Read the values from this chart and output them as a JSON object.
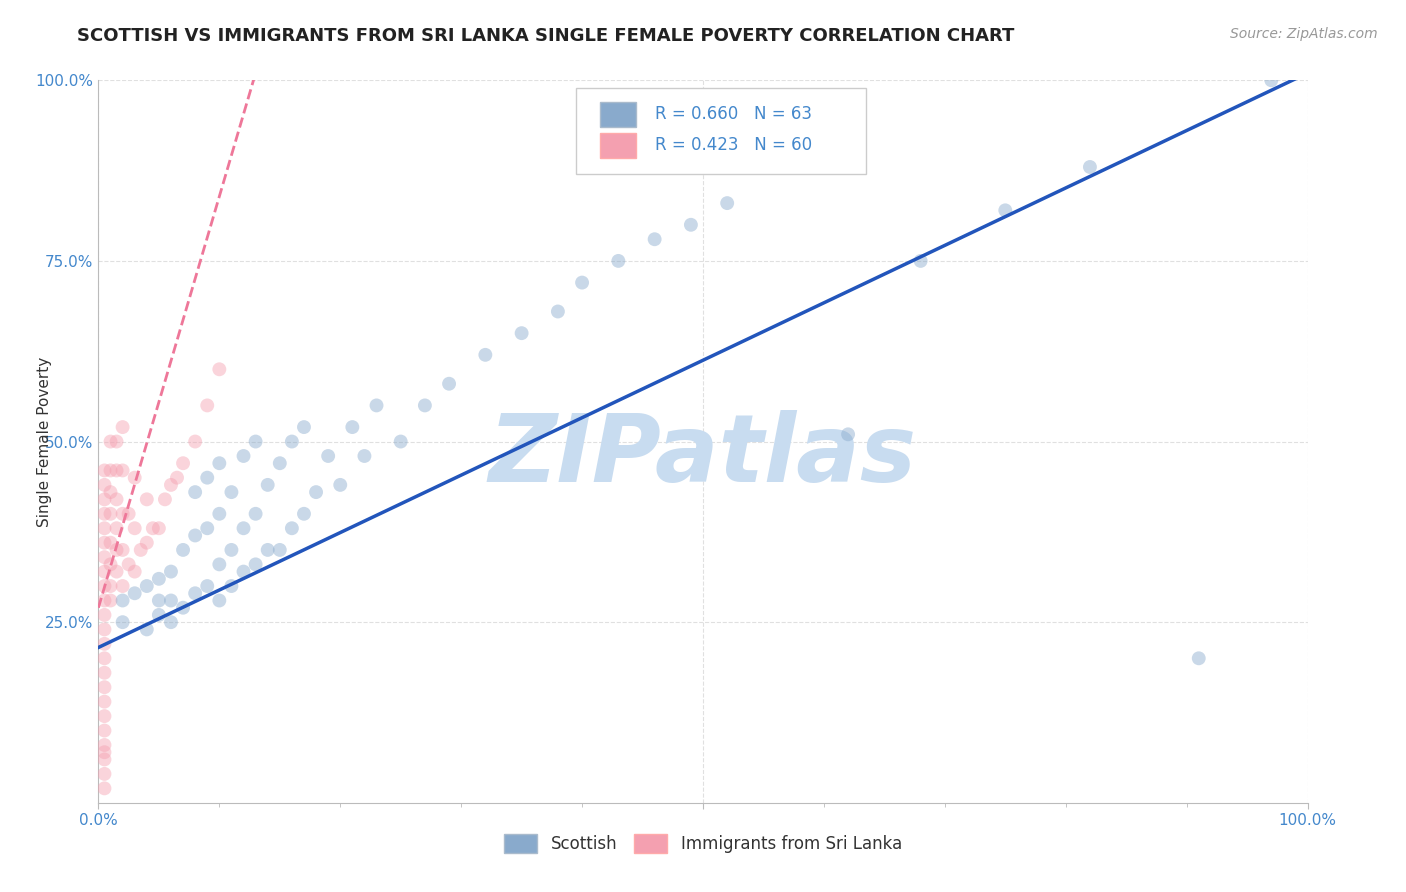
{
  "title": "SCOTTISH VS IMMIGRANTS FROM SRI LANKA SINGLE FEMALE POVERTY CORRELATION CHART",
  "source": "Source: ZipAtlas.com",
  "ylabel": "Single Female Poverty",
  "xlim": [
    0,
    1
  ],
  "ylim": [
    0,
    1
  ],
  "blue_color": "#89AACC",
  "pink_color": "#F4A0B0",
  "blue_line_color": "#2255BB",
  "pink_line_color": "#EE7799",
  "watermark": "ZIPatlas",
  "watermark_color": "#C8DCF0",
  "title_fontsize": 13,
  "scatter_alpha": 0.45,
  "scatter_size": 100,
  "background_color": "#FFFFFF",
  "grid_color": "#E0E0E0",
  "tick_color": "#4488CC",
  "blue_r": 0.66,
  "blue_n": 63,
  "pink_r": 0.423,
  "pink_n": 60,
  "blue_line_x0": 0.0,
  "blue_line_y0": 0.215,
  "blue_line_x1": 1.0,
  "blue_line_y1": 1.01,
  "pink_line_x0": 0.0,
  "pink_line_y0": 0.27,
  "pink_line_x1": 0.13,
  "pink_line_y1": 1.01,
  "scottish_x": [
    0.02,
    0.02,
    0.03,
    0.04,
    0.04,
    0.05,
    0.05,
    0.05,
    0.06,
    0.06,
    0.06,
    0.07,
    0.07,
    0.08,
    0.08,
    0.08,
    0.09,
    0.09,
    0.09,
    0.1,
    0.1,
    0.1,
    0.1,
    0.11,
    0.11,
    0.11,
    0.12,
    0.12,
    0.12,
    0.13,
    0.13,
    0.13,
    0.14,
    0.14,
    0.15,
    0.15,
    0.16,
    0.16,
    0.17,
    0.17,
    0.18,
    0.19,
    0.2,
    0.21,
    0.22,
    0.23,
    0.25,
    0.27,
    0.29,
    0.32,
    0.35,
    0.38,
    0.4,
    0.43,
    0.46,
    0.49,
    0.52,
    0.62,
    0.68,
    0.75,
    0.82,
    0.91,
    0.97
  ],
  "scottish_y": [
    0.25,
    0.28,
    0.29,
    0.24,
    0.3,
    0.26,
    0.28,
    0.31,
    0.25,
    0.28,
    0.32,
    0.27,
    0.35,
    0.29,
    0.37,
    0.43,
    0.3,
    0.38,
    0.45,
    0.28,
    0.33,
    0.4,
    0.47,
    0.3,
    0.35,
    0.43,
    0.32,
    0.38,
    0.48,
    0.33,
    0.4,
    0.5,
    0.35,
    0.44,
    0.35,
    0.47,
    0.38,
    0.5,
    0.4,
    0.52,
    0.43,
    0.48,
    0.44,
    0.52,
    0.48,
    0.55,
    0.5,
    0.55,
    0.58,
    0.62,
    0.65,
    0.68,
    0.72,
    0.75,
    0.78,
    0.8,
    0.83,
    0.51,
    0.75,
    0.82,
    0.88,
    0.2,
    1.0
  ],
  "srilanka_x": [
    0.005,
    0.005,
    0.005,
    0.005,
    0.005,
    0.005,
    0.005,
    0.005,
    0.005,
    0.005,
    0.005,
    0.005,
    0.005,
    0.005,
    0.005,
    0.005,
    0.005,
    0.005,
    0.005,
    0.005,
    0.005,
    0.005,
    0.005,
    0.005,
    0.01,
    0.01,
    0.01,
    0.01,
    0.01,
    0.01,
    0.01,
    0.01,
    0.015,
    0.015,
    0.015,
    0.015,
    0.015,
    0.015,
    0.02,
    0.02,
    0.02,
    0.02,
    0.02,
    0.025,
    0.025,
    0.03,
    0.03,
    0.03,
    0.035,
    0.04,
    0.04,
    0.045,
    0.05,
    0.055,
    0.06,
    0.065,
    0.07,
    0.08,
    0.09,
    0.1
  ],
  "srilanka_y": [
    0.02,
    0.04,
    0.06,
    0.07,
    0.08,
    0.1,
    0.12,
    0.14,
    0.16,
    0.18,
    0.2,
    0.22,
    0.24,
    0.26,
    0.28,
    0.3,
    0.32,
    0.34,
    0.36,
    0.38,
    0.4,
    0.42,
    0.44,
    0.46,
    0.28,
    0.3,
    0.33,
    0.36,
    0.4,
    0.43,
    0.46,
    0.5,
    0.32,
    0.35,
    0.38,
    0.42,
    0.46,
    0.5,
    0.3,
    0.35,
    0.4,
    0.46,
    0.52,
    0.33,
    0.4,
    0.32,
    0.38,
    0.45,
    0.35,
    0.36,
    0.42,
    0.38,
    0.38,
    0.42,
    0.44,
    0.45,
    0.47,
    0.5,
    0.55,
    0.6
  ]
}
